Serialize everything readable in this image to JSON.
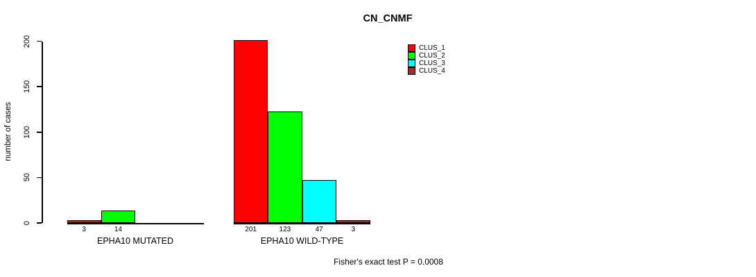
{
  "chart_data": {
    "type": "bar",
    "title": "CN_CNMF",
    "ylabel": "number of cases",
    "ylim": [
      0,
      200
    ],
    "yticks": [
      0,
      50,
      100,
      150,
      200
    ],
    "grid": false,
    "legend_position": "top-right",
    "series": [
      "CLUS_1",
      "CLUS_2",
      "CLUS_3",
      "CLUS_4"
    ],
    "colors": [
      "#ff0000",
      "#00ff00",
      "#00ffff",
      "#a52a2a"
    ],
    "groups": [
      {
        "label": "EPHA10 MUTATED",
        "values": [
          3,
          14,
          0,
          0
        ]
      },
      {
        "label": "EPHA10 WILD-TYPE",
        "values": [
          201,
          123,
          47,
          3
        ]
      }
    ],
    "annotation": "Fisher's exact test P = 0.0008"
  }
}
